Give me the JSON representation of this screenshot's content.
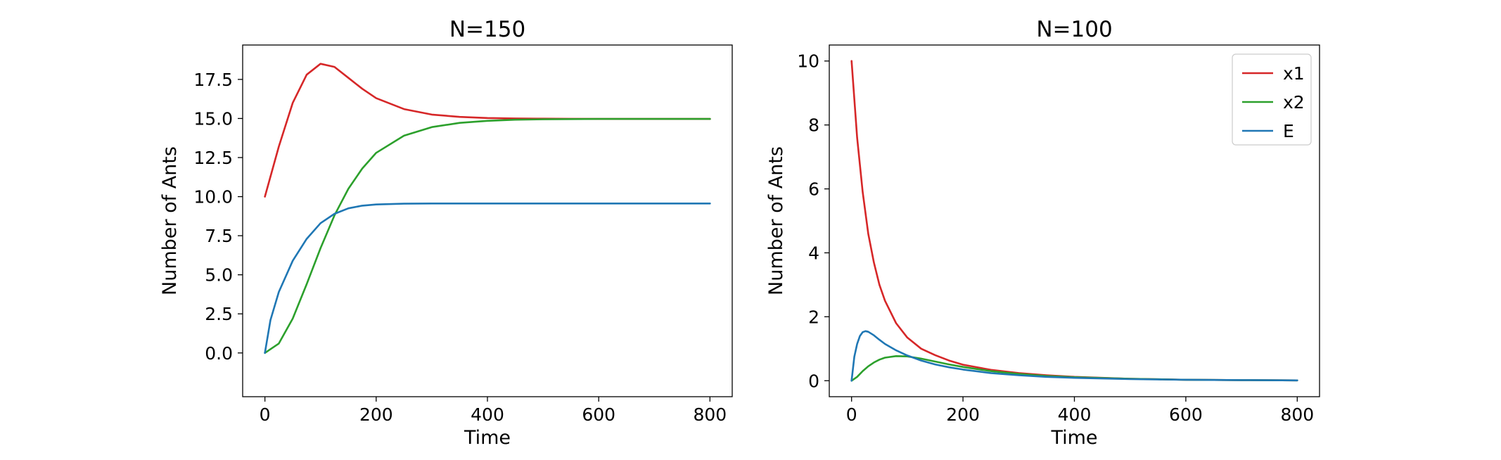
{
  "chart_data": [
    {
      "type": "line",
      "title": "N=150",
      "xlabel": "Time",
      "ylabel": "Number of Ants",
      "xlim": [
        -40,
        840
      ],
      "ylim": [
        -2.8,
        19.7
      ],
      "xticks": [
        0,
        200,
        400,
        600,
        800
      ],
      "xtick_labels": [
        "0",
        "200",
        "400",
        "600",
        "800"
      ],
      "yticks": [
        0,
        2.5,
        5,
        7.5,
        10,
        12.5,
        15,
        17.5
      ],
      "ytick_labels": [
        "0.0",
        "2.5",
        "5.0",
        "7.5",
        "10.0",
        "12.5",
        "15.0",
        "17.5"
      ],
      "grid": false,
      "legend": null,
      "series": [
        {
          "name": "x1",
          "color": "#d62728",
          "x": [
            0,
            25,
            50,
            75,
            100,
            125,
            150,
            175,
            200,
            250,
            300,
            350,
            400,
            450,
            500,
            550,
            600,
            700,
            800
          ],
          "y": [
            10.0,
            13.2,
            16.0,
            17.8,
            18.5,
            18.3,
            17.6,
            16.9,
            16.3,
            15.6,
            15.25,
            15.1,
            15.03,
            15.0,
            14.99,
            14.98,
            14.97,
            14.97,
            14.97
          ]
        },
        {
          "name": "x2",
          "color": "#2ca02c",
          "x": [
            0,
            25,
            50,
            75,
            100,
            125,
            150,
            175,
            200,
            250,
            300,
            350,
            400,
            450,
            500,
            550,
            600,
            700,
            800
          ],
          "y": [
            0.0,
            0.6,
            2.2,
            4.4,
            6.7,
            8.8,
            10.5,
            11.8,
            12.8,
            13.9,
            14.45,
            14.72,
            14.85,
            14.92,
            14.95,
            14.96,
            14.97,
            14.97,
            14.97
          ]
        },
        {
          "name": "E",
          "color": "#1f77b4",
          "x": [
            0,
            10,
            25,
            50,
            75,
            100,
            125,
            150,
            175,
            200,
            250,
            300,
            400,
            500,
            600,
            700,
            800
          ],
          "y": [
            0.0,
            2.1,
            3.9,
            5.9,
            7.3,
            8.3,
            8.9,
            9.25,
            9.42,
            9.5,
            9.55,
            9.56,
            9.56,
            9.56,
            9.56,
            9.56,
            9.56
          ]
        }
      ]
    },
    {
      "type": "line",
      "title": "N=100",
      "xlabel": "Time",
      "ylabel": "Number of Ants",
      "xlim": [
        -40,
        840
      ],
      "ylim": [
        -0.5,
        10.5
      ],
      "xticks": [
        0,
        200,
        400,
        600,
        800
      ],
      "xtick_labels": [
        "0",
        "200",
        "400",
        "600",
        "800"
      ],
      "yticks": [
        0,
        2,
        4,
        6,
        8,
        10
      ],
      "ytick_labels": [
        "0",
        "2",
        "4",
        "6",
        "8",
        "10"
      ],
      "grid": false,
      "legend": "top-right",
      "series": [
        {
          "name": "x1",
          "color": "#d62728",
          "x": [
            0,
            10,
            20,
            30,
            40,
            50,
            60,
            80,
            100,
            125,
            150,
            175,
            200,
            250,
            300,
            350,
            400,
            500,
            600,
            700,
            800
          ],
          "y": [
            10.0,
            7.6,
            5.9,
            4.6,
            3.7,
            3.0,
            2.5,
            1.8,
            1.35,
            1.0,
            0.8,
            0.63,
            0.5,
            0.34,
            0.24,
            0.17,
            0.12,
            0.06,
            0.03,
            0.02,
            0.01
          ]
        },
        {
          "name": "x2",
          "color": "#2ca02c",
          "x": [
            0,
            10,
            20,
            30,
            40,
            50,
            60,
            80,
            100,
            125,
            150,
            175,
            200,
            250,
            300,
            350,
            400,
            500,
            600,
            700,
            800
          ],
          "y": [
            0.0,
            0.12,
            0.3,
            0.45,
            0.57,
            0.66,
            0.72,
            0.77,
            0.76,
            0.69,
            0.6,
            0.51,
            0.43,
            0.3,
            0.21,
            0.15,
            0.11,
            0.06,
            0.03,
            0.02,
            0.01
          ]
        },
        {
          "name": "E",
          "color": "#1f77b4",
          "x": [
            0,
            5,
            10,
            15,
            20,
            25,
            30,
            40,
            50,
            60,
            80,
            100,
            125,
            150,
            175,
            200,
            250,
            300,
            350,
            400,
            500,
            600,
            700,
            800
          ],
          "y": [
            0.0,
            0.75,
            1.15,
            1.4,
            1.52,
            1.55,
            1.53,
            1.42,
            1.28,
            1.15,
            0.95,
            0.79,
            0.63,
            0.51,
            0.42,
            0.35,
            0.24,
            0.17,
            0.12,
            0.09,
            0.05,
            0.03,
            0.02,
            0.01
          ]
        }
      ]
    }
  ]
}
